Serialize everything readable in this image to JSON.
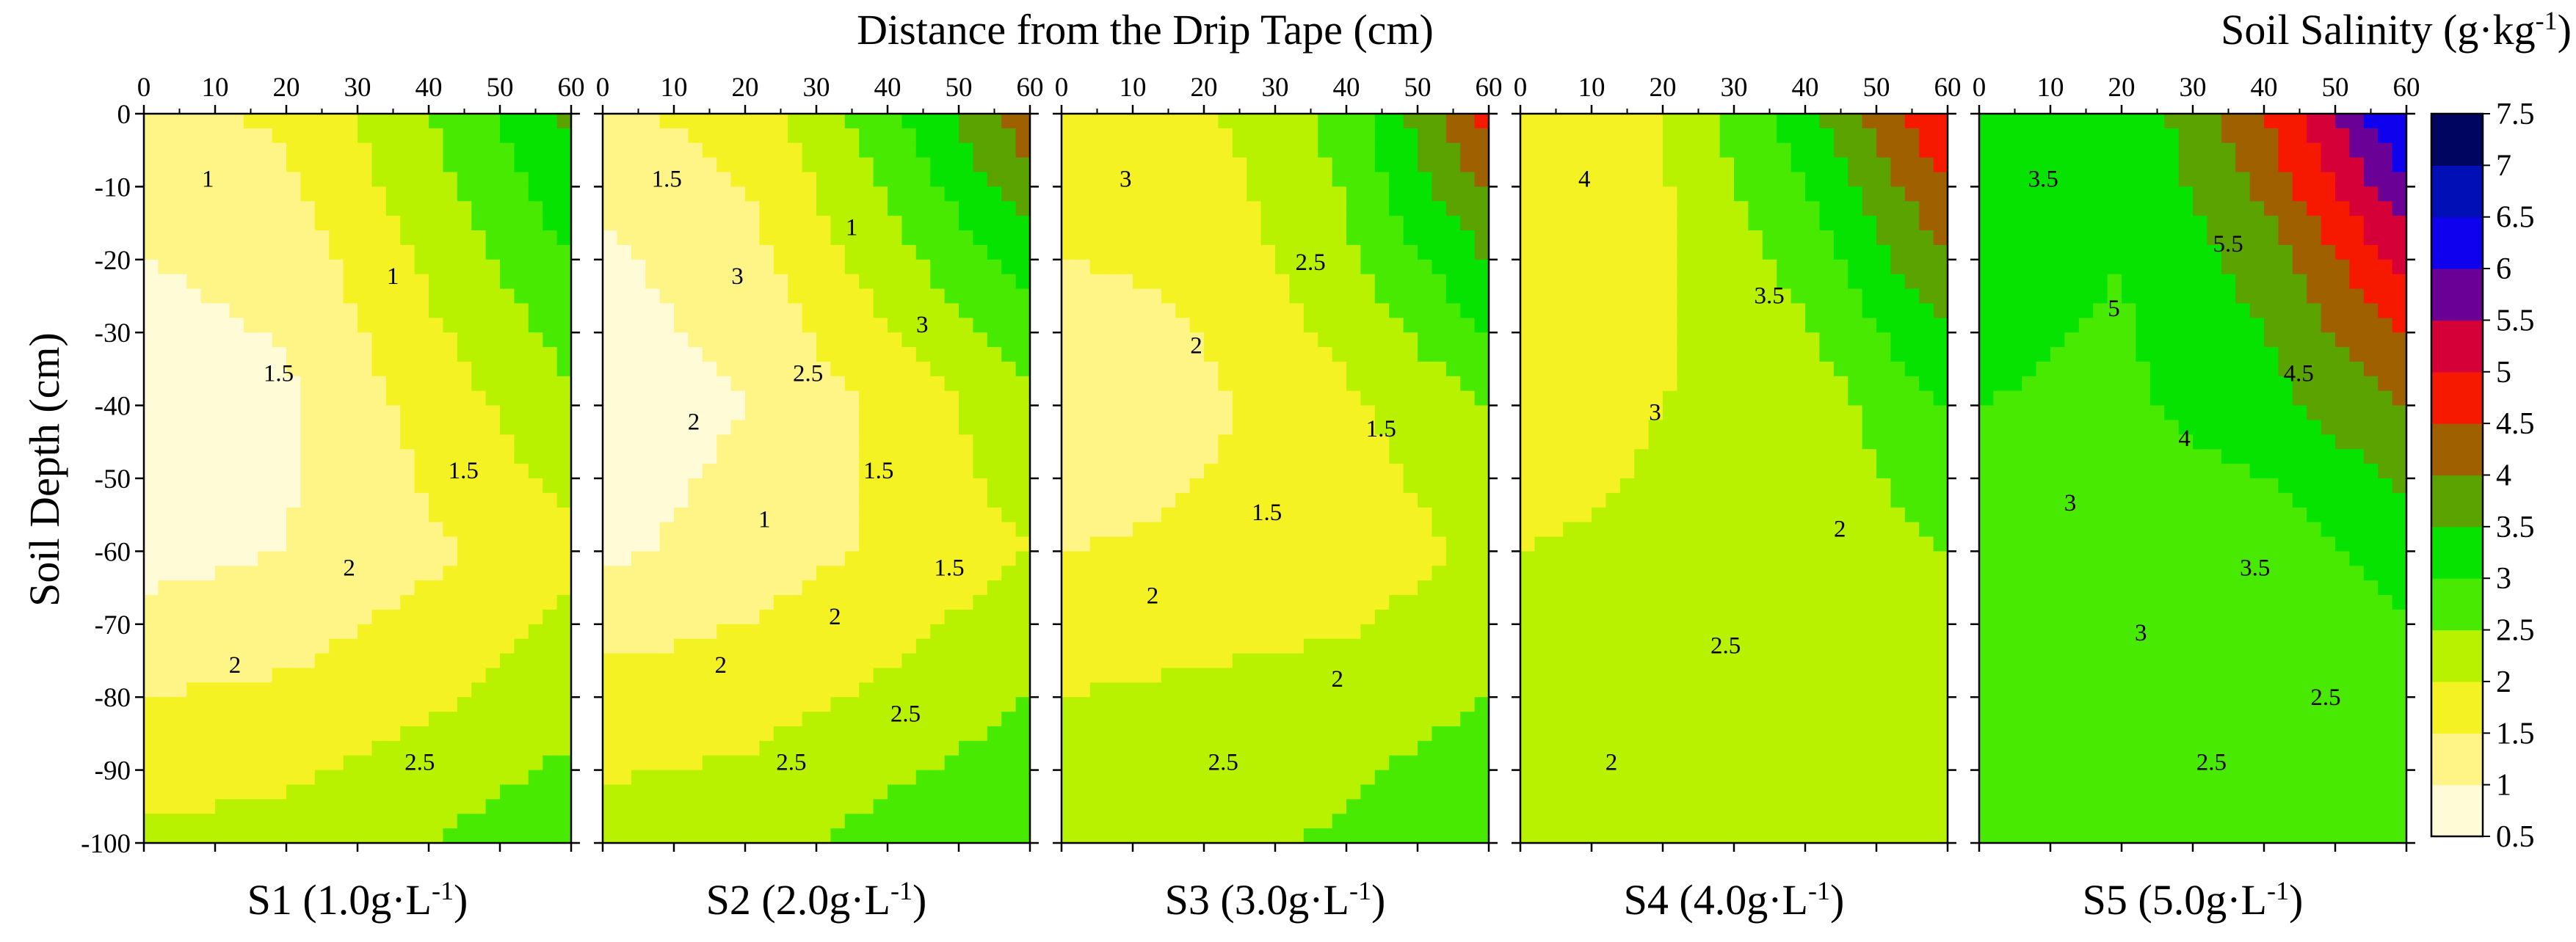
{
  "chart_data": {
    "type": "heatmap",
    "subtype": "filled-contour",
    "title": "Distance from the Drip Tape (cm)",
    "xlabel": "Distance from the Drip Tape (cm)",
    "ylabel": "Soil Depth (cm)",
    "colorbar_label_main": "Soil Salinity (g·kg",
    "colorbar_label_sup": "-1",
    "colorbar_label_end": ")",
    "xlim": [
      0,
      60
    ],
    "ylim": [
      -100,
      0
    ],
    "x_ticks": [
      "0",
      "10",
      "20",
      "30",
      "40",
      "50",
      "60"
    ],
    "y_ticks": [
      "0",
      "-10",
      "-20",
      "-30",
      "-40",
      "-50",
      "-60",
      "-70",
      "-80",
      "-90",
      "-100"
    ],
    "levels": [
      0.5,
      1,
      1.5,
      2,
      2.5,
      3,
      3.5,
      4,
      4.5,
      5,
      5.5,
      6,
      6.5,
      7,
      7.5
    ],
    "colorbar": {
      "ticks": [
        "7.5",
        "7",
        "6.5",
        "6",
        "5.5",
        "5",
        "4.5",
        "4",
        "3.5",
        "3",
        "2.5",
        "2",
        "1.5",
        "1",
        "0.5"
      ],
      "colors": [
        "#ffffff",
        "#fffbd2",
        "#fff7a6",
        "#fff377",
        "#ffef44",
        "#eaf600",
        "#c8f200",
        "#8cf000",
        "#49ea00",
        "#1fe800",
        "#00e200",
        "#55c800",
        "#5f8b00",
        "#8b6b00",
        "#bf4f00",
        "#f41e00",
        "#ff0000",
        "#d4003a",
        "#990066",
        "#5a00a4",
        "#2000e6",
        "#0000f4",
        "#0010c6",
        "#000c93",
        "#000666",
        "#00002e"
      ]
    },
    "panels": [
      {
        "name": "S1",
        "label_main": "S1 (1.0g·L",
        "label_sup": "-1",
        "label_end": ")",
        "irrigation_salinity_gL": 1.0,
        "grid_x": [
          0,
          20,
          40,
          60
        ],
        "grid_y": [
          0,
          -20,
          -40,
          -60,
          -80,
          -100
        ],
        "grid_z": [
          [
            1.3,
            1.6,
            2.5,
            3.6
          ],
          [
            1.0,
            1.2,
            2.1,
            3.0
          ],
          [
            0.6,
            0.9,
            1.7,
            2.4
          ],
          [
            0.8,
            1.0,
            1.4,
            1.9
          ],
          [
            1.5,
            1.6,
            1.9,
            2.3
          ],
          [
            2.1,
            2.2,
            2.5,
            2.9
          ]
        ],
        "contour_labels": [
          "1",
          "1",
          "1.5",
          "1.5",
          "2",
          "2",
          "2.5"
        ]
      },
      {
        "name": "S2",
        "label_main": "S2 (2.0g·L",
        "label_sup": "-1",
        "label_end": ")",
        "irrigation_salinity_gL": 2.0,
        "grid_x": [
          0,
          20,
          40,
          60
        ],
        "grid_y": [
          0,
          -20,
          -40,
          -60,
          -80,
          -100
        ],
        "grid_z": [
          [
            1.4,
            1.7,
            2.8,
            4.4
          ],
          [
            0.9,
            1.3,
            2.3,
            3.2
          ],
          [
            0.7,
            1.0,
            1.6,
            2.4
          ],
          [
            0.9,
            1.2,
            1.6,
            2.0
          ],
          [
            1.7,
            1.8,
            2.1,
            2.5
          ],
          [
            2.2,
            2.3,
            2.7,
            3.0
          ]
        ],
        "contour_labels": [
          "1.5",
          "1",
          "3",
          "3",
          "2.5",
          "2",
          "1.5",
          "1",
          "1.5",
          "2",
          "2",
          "2.5",
          "2.5"
        ]
      },
      {
        "name": "S3",
        "label_main": "S3 (3.0g·L",
        "label_sup": "-1",
        "label_end": ")",
        "irrigation_salinity_gL": 3.0,
        "grid_x": [
          0,
          20,
          40,
          60
        ],
        "grid_y": [
          0,
          -20,
          -40,
          -60,
          -80,
          -100
        ],
        "grid_z": [
          [
            1.9,
            1.9,
            2.7,
            4.7
          ],
          [
            1.5,
            1.6,
            2.4,
            3.5
          ],
          [
            1.1,
            1.4,
            1.9,
            2.5
          ],
          [
            1.5,
            1.6,
            1.7,
            2.1
          ],
          [
            2.0,
            2.1,
            2.2,
            2.5
          ],
          [
            2.2,
            2.3,
            2.6,
            3.0
          ]
        ],
        "contour_labels": [
          "3",
          "2.5",
          "2",
          "1.5",
          "1.5",
          "2",
          "2",
          "2.5"
        ]
      },
      {
        "name": "S4",
        "label_main": "S4 (4.0g·L",
        "label_sup": "-1",
        "label_end": ")",
        "irrigation_salinity_gL": 4.0,
        "grid_x": [
          0,
          20,
          40,
          60
        ],
        "grid_y": [
          0,
          -20,
          -40,
          -60,
          -80,
          -100
        ],
        "grid_z": [
          [
            1.9,
            2.0,
            3.3,
            5.0
          ],
          [
            1.8,
            1.9,
            2.7,
            4.0
          ],
          [
            1.7,
            2.0,
            2.2,
            3.0
          ],
          [
            2.0,
            2.1,
            2.2,
            2.5
          ],
          [
            2.1,
            2.2,
            2.3,
            2.4
          ],
          [
            2.2,
            2.3,
            2.3,
            2.4
          ]
        ],
        "contour_labels": [
          "4",
          "3.5",
          "3",
          "2",
          "2.5",
          "2"
        ]
      },
      {
        "name": "S5",
        "label_main": "S5 (5.0g·L",
        "label_sup": "-1",
        "label_end": ")",
        "irrigation_salinity_gL": 5.0,
        "grid_x": [
          0,
          20,
          40,
          60
        ],
        "grid_y": [
          0,
          -20,
          -40,
          -60,
          -80,
          -100
        ],
        "grid_z": [
          [
            3.5,
            3.0,
            4.5,
            6.6
          ],
          [
            3.2,
            3.0,
            3.7,
            5.2
          ],
          [
            3.0,
            2.9,
            3.3,
            4.0
          ],
          [
            2.6,
            2.7,
            2.7,
            3.2
          ],
          [
            2.6,
            2.6,
            2.5,
            2.7
          ],
          [
            2.5,
            2.5,
            2.6,
            2.7
          ]
        ],
        "contour_labels": [
          "3.5",
          "5.5",
          "5",
          "4.5",
          "4",
          "3",
          "3.5",
          "3",
          "2.5",
          "2.5"
        ]
      }
    ]
  }
}
